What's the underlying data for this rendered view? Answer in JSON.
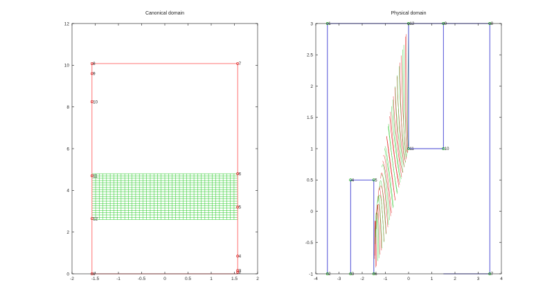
{
  "chart_data": [
    {
      "type": "line",
      "title": "Canonical domain",
      "xlim": [
        -2,
        2
      ],
      "ylim": [
        0,
        12
      ],
      "xticks": [
        "-2",
        "-1.5",
        "-1",
        "-0.5",
        "0",
        "0.5",
        "1",
        "1.5",
        "2"
      ],
      "xtick_values": [
        -2,
        -1.5,
        -1,
        -0.5,
        0,
        0.5,
        1,
        1.5,
        2
      ],
      "yticks": [
        "0",
        "2",
        "4",
        "6",
        "8",
        "10",
        "12"
      ],
      "ytick_values": [
        0,
        2,
        4,
        6,
        8,
        10,
        12
      ],
      "boundary_color": "#ff6060",
      "mesh_color": "#1ec81e",
      "boundary": [
        [
          -1.57,
          0
        ],
        [
          1.57,
          0
        ],
        [
          1.57,
          10.08
        ],
        [
          -1.57,
          10.08
        ],
        [
          -1.57,
          0
        ]
      ],
      "mesh": {
        "x0": -1.57,
        "x1": 1.57,
        "y0": 2.6,
        "y1": 4.8,
        "nx": 41,
        "ny": 21
      },
      "vertices": [
        {
          "label": "1",
          "x": -1.57,
          "y": 0.0
        },
        {
          "label": "2",
          "x": 1.57,
          "y": 0.08
        },
        {
          "label": "3",
          "x": 1.57,
          "y": 0.16
        },
        {
          "label": "4",
          "x": 1.57,
          "y": 0.85
        },
        {
          "label": "5",
          "x": 1.57,
          "y": 3.2
        },
        {
          "label": "6",
          "x": 1.57,
          "y": 4.8
        },
        {
          "label": "7",
          "x": 1.57,
          "y": 10.08
        },
        {
          "label": "8",
          "x": -1.57,
          "y": 10.08
        },
        {
          "label": "9",
          "x": -1.57,
          "y": 9.6
        },
        {
          "label": "10",
          "x": -1.57,
          "y": 8.25
        },
        {
          "label": "11",
          "x": -1.57,
          "y": 4.7
        },
        {
          "label": "12",
          "x": -1.57,
          "y": 2.65
        }
      ]
    },
    {
      "type": "line",
      "title": "Physical domain",
      "xlim": [
        -4,
        4
      ],
      "ylim": [
        -1,
        3
      ],
      "xticks": [
        "-4",
        "-3",
        "-2",
        "-1",
        "0",
        "1",
        "2",
        "3",
        "4"
      ],
      "xtick_values": [
        -4,
        -3,
        -2,
        -1,
        0,
        1,
        2,
        3,
        4
      ],
      "yticks": [
        "-1",
        "-0.5",
        "0",
        "0.5",
        "1",
        "1.5",
        "2",
        "2.5",
        "3"
      ],
      "ytick_values": [
        -1,
        -0.5,
        0,
        0.5,
        1,
        1.5,
        2,
        2.5,
        3
      ],
      "boundary_color": "#3c3cd2",
      "mesh_colors": [
        "#2ec82e",
        "#e01010"
      ],
      "boundary": [
        [
          -3.5,
          -1
        ],
        [
          -3.5,
          3
        ],
        [
          3.5,
          3
        ],
        [
          3.5,
          -1
        ],
        [
          1.5,
          -1
        ]
      ],
      "boundary_extra": [
        [
          [
            0,
            3
          ],
          [
            0,
            1
          ],
          [
            1.5,
            1
          ],
          [
            1.5,
            3
          ]
        ],
        [
          [
            -2.5,
            -1
          ],
          [
            -2.5,
            0.5
          ],
          [
            -1.5,
            0.5
          ]
        ],
        [
          [
            -1.5,
            -1
          ],
          [
            -1.5,
            0.5
          ]
        ]
      ],
      "vertices": [
        {
          "label": "1",
          "x": -3.5,
          "y": 3
        },
        {
          "label": "2",
          "x": -3.5,
          "y": -1
        },
        {
          "label": "3",
          "x": -2.5,
          "y": -1
        },
        {
          "label": "4",
          "x": -2.5,
          "y": 0.5
        },
        {
          "label": "5",
          "x": -1.5,
          "y": 0.5
        },
        {
          "label": "6",
          "x": -1.5,
          "y": -1
        },
        {
          "label": "7",
          "x": 3.5,
          "y": -1
        },
        {
          "label": "8",
          "x": 3.5,
          "y": 3
        },
        {
          "label": "9",
          "x": 1.5,
          "y": 3
        },
        {
          "label": "10",
          "x": 1.5,
          "y": 1
        },
        {
          "label": "11",
          "x": 0,
          "y": 1
        },
        {
          "label": "12",
          "x": 0,
          "y": 3
        }
      ]
    }
  ]
}
